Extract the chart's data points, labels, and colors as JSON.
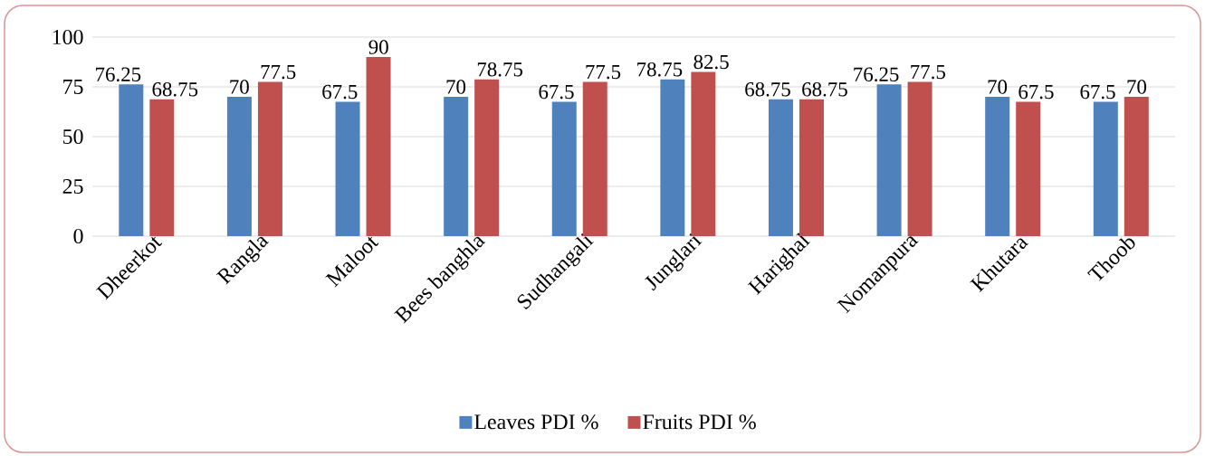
{
  "chart_data": {
    "type": "bar",
    "categories": [
      "Dheerkot",
      "Rangla",
      "Maloot",
      "Bees banghla",
      "Sudhangali",
      "Junglari",
      "Harighal",
      "Nomanpura",
      "Khutara",
      "Thoob"
    ],
    "series": [
      {
        "name": "Leaves PDI %",
        "color": "#4f81bd",
        "values": [
          76.25,
          70,
          67.5,
          70,
          67.5,
          78.75,
          68.75,
          76.25,
          70,
          67.5
        ]
      },
      {
        "name": "Fruits PDI %",
        "color": "#c0504d",
        "values": [
          68.75,
          77.5,
          90,
          78.75,
          77.5,
          82.5,
          68.75,
          77.5,
          67.5,
          70
        ]
      }
    ],
    "ylim": [
      0,
      100
    ],
    "yticks": [
      0,
      25,
      50,
      75,
      100
    ],
    "grid": "y",
    "legend": "bottom",
    "data_labels": true
  }
}
